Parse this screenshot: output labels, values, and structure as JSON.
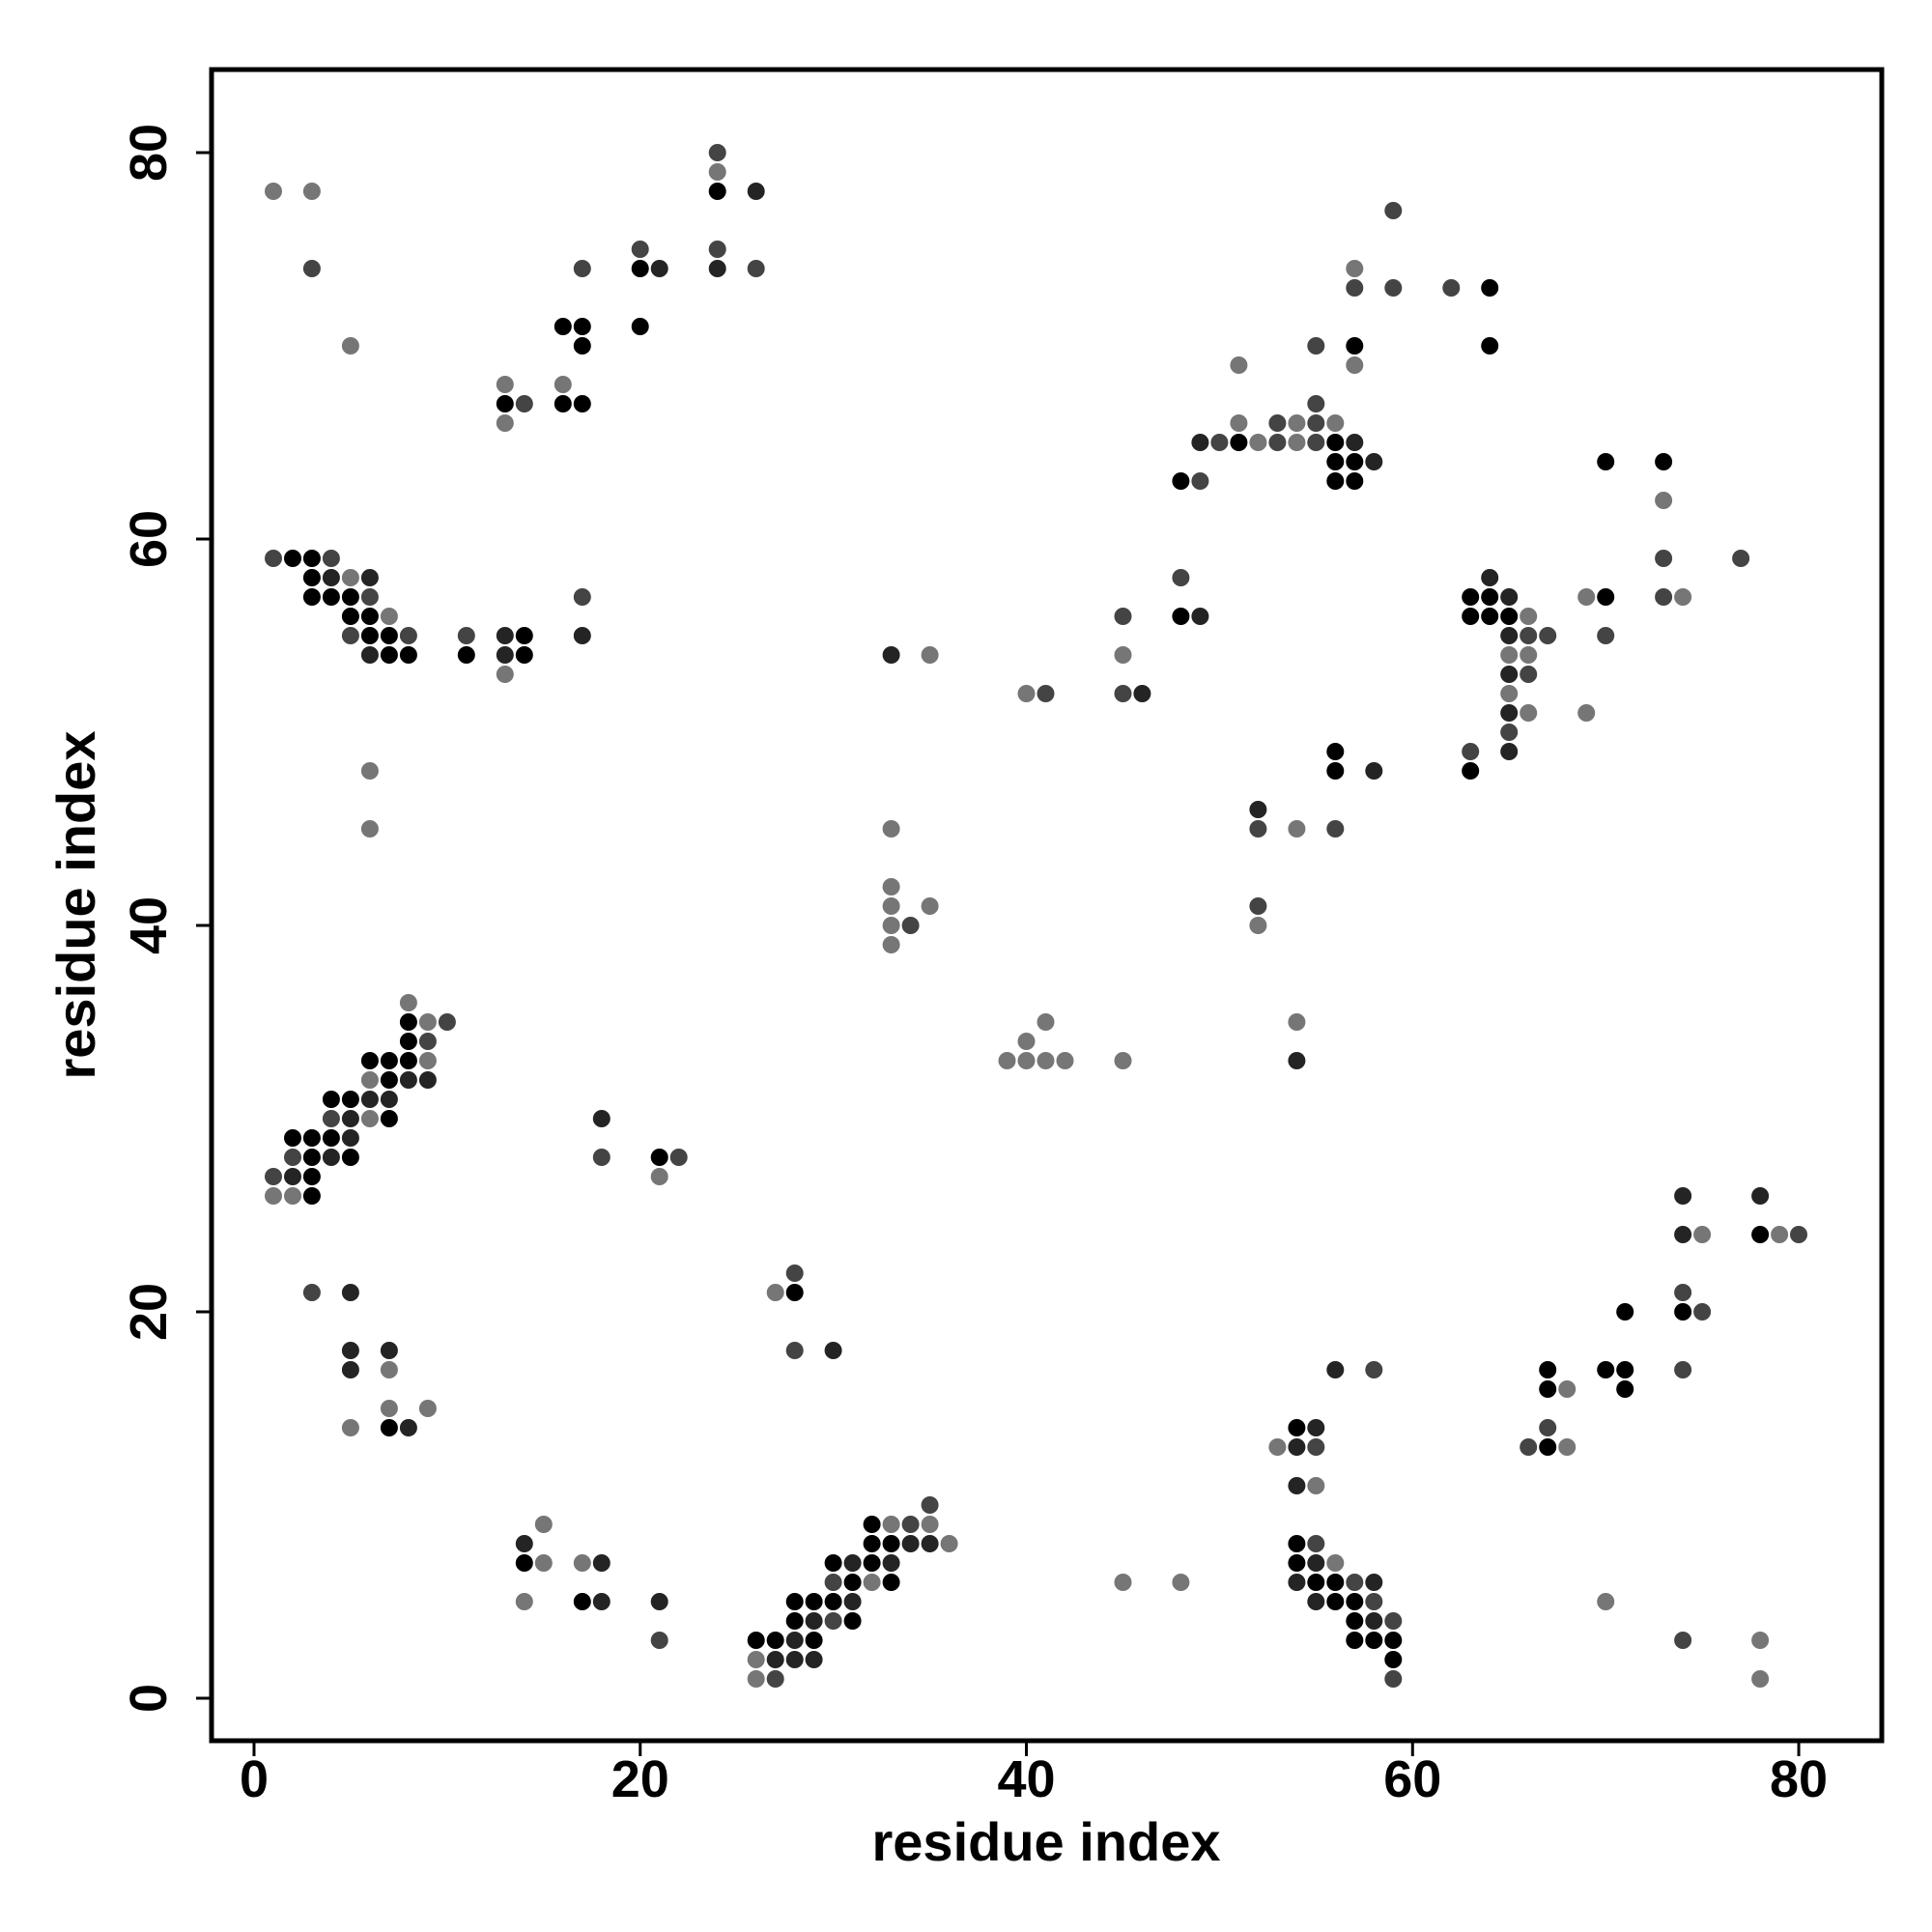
{
  "chart_data": {
    "type": "scatter",
    "title": "",
    "xlabel": "residue index",
    "ylabel": "residue index",
    "xlim": [
      -2.2,
      84.3
    ],
    "ylim": [
      -2.2,
      84.3
    ],
    "xticks": [
      0,
      20,
      40,
      60,
      80
    ],
    "yticks": [
      0,
      20,
      40,
      60,
      80
    ],
    "grid": false,
    "legend": "none",
    "shade_colors": {
      "1": "#000000",
      "2": "#242424",
      "3": "#444444",
      "4": "#767676"
    },
    "points": [
      [
        1,
        78,
        4
      ],
      [
        3,
        78,
        4
      ],
      [
        3,
        74,
        3
      ],
      [
        5,
        70,
        4
      ],
      [
        24,
        80,
        3
      ],
      [
        24,
        79,
        4
      ],
      [
        24,
        78,
        1
      ],
      [
        26,
        78,
        2
      ],
      [
        24,
        75,
        3
      ],
      [
        24,
        74,
        2
      ],
      [
        26,
        74,
        3
      ],
      [
        20,
        75,
        3
      ],
      [
        20,
        74,
        1
      ],
      [
        21,
        74,
        2
      ],
      [
        17,
        74,
        3
      ],
      [
        20,
        71,
        1
      ],
      [
        16,
        71,
        1
      ],
      [
        17,
        71,
        1
      ],
      [
        17,
        70,
        1
      ],
      [
        13,
        68,
        4
      ],
      [
        16,
        68,
        4
      ],
      [
        13,
        67,
        1
      ],
      [
        14,
        67,
        3
      ],
      [
        16,
        67,
        1
      ],
      [
        17,
        67,
        1
      ],
      [
        13,
        66,
        4
      ],
      [
        1,
        59,
        3
      ],
      [
        2,
        59,
        1
      ],
      [
        3,
        59,
        1
      ],
      [
        4,
        59,
        3
      ],
      [
        3,
        58,
        1
      ],
      [
        4,
        58,
        2
      ],
      [
        5,
        58,
        4
      ],
      [
        6,
        58,
        2
      ],
      [
        3,
        57,
        1
      ],
      [
        4,
        57,
        1
      ],
      [
        5,
        57,
        1
      ],
      [
        6,
        57,
        3
      ],
      [
        5,
        56,
        1
      ],
      [
        6,
        56,
        1
      ],
      [
        7,
        56,
        4
      ],
      [
        5,
        55,
        3
      ],
      [
        6,
        55,
        1
      ],
      [
        7,
        55,
        1
      ],
      [
        8,
        55,
        3
      ],
      [
        6,
        54,
        2
      ],
      [
        7,
        54,
        1
      ],
      [
        8,
        54,
        1
      ],
      [
        11,
        55,
        3
      ],
      [
        11,
        54,
        1
      ],
      [
        13,
        55,
        2
      ],
      [
        14,
        55,
        1
      ],
      [
        13,
        54,
        2
      ],
      [
        14,
        54,
        1
      ],
      [
        13,
        53,
        4
      ],
      [
        17,
        57,
        3
      ],
      [
        17,
        55,
        2
      ],
      [
        6,
        48,
        4
      ],
      [
        6,
        45,
        4
      ],
      [
        8,
        36,
        4
      ],
      [
        8,
        35,
        1
      ],
      [
        9,
        35,
        4
      ],
      [
        10,
        35,
        3
      ],
      [
        8,
        34,
        1
      ],
      [
        9,
        34,
        3
      ],
      [
        6,
        33,
        1
      ],
      [
        7,
        33,
        1
      ],
      [
        8,
        33,
        1
      ],
      [
        9,
        33,
        4
      ],
      [
        6,
        32,
        4
      ],
      [
        7,
        32,
        1
      ],
      [
        8,
        32,
        2
      ],
      [
        9,
        32,
        2
      ],
      [
        4,
        31,
        1
      ],
      [
        5,
        31,
        1
      ],
      [
        6,
        31,
        2
      ],
      [
        7,
        31,
        2
      ],
      [
        4,
        30,
        3
      ],
      [
        5,
        30,
        2
      ],
      [
        6,
        30,
        4
      ],
      [
        7,
        30,
        1
      ],
      [
        2,
        29,
        1
      ],
      [
        3,
        29,
        1
      ],
      [
        4,
        29,
        1
      ],
      [
        5,
        29,
        2
      ],
      [
        2,
        28,
        3
      ],
      [
        3,
        28,
        1
      ],
      [
        4,
        28,
        2
      ],
      [
        5,
        28,
        1
      ],
      [
        1,
        27,
        3
      ],
      [
        2,
        27,
        2
      ],
      [
        3,
        27,
        1
      ],
      [
        1,
        26,
        4
      ],
      [
        2,
        26,
        4
      ],
      [
        3,
        26,
        1
      ],
      [
        18,
        30,
        2
      ],
      [
        18,
        28,
        3
      ],
      [
        21,
        28,
        1
      ],
      [
        22,
        28,
        3
      ],
      [
        21,
        27,
        4
      ],
      [
        3,
        21,
        3
      ],
      [
        5,
        21,
        2
      ],
      [
        5,
        18,
        2
      ],
      [
        7,
        18,
        2
      ],
      [
        5,
        17,
        2
      ],
      [
        7,
        17,
        4
      ],
      [
        7,
        15,
        4
      ],
      [
        9,
        15,
        4
      ],
      [
        5,
        14,
        4
      ],
      [
        7,
        14,
        1
      ],
      [
        8,
        14,
        2
      ],
      [
        28,
        22,
        3
      ],
      [
        27,
        21,
        4
      ],
      [
        28,
        21,
        1
      ],
      [
        28,
        18,
        3
      ],
      [
        30,
        18,
        2
      ],
      [
        15,
        9,
        4
      ],
      [
        14,
        8,
        2
      ],
      [
        14,
        7,
        1
      ],
      [
        15,
        7,
        4
      ],
      [
        17,
        7,
        4
      ],
      [
        18,
        7,
        2
      ],
      [
        14,
        5,
        4
      ],
      [
        17,
        5,
        1
      ],
      [
        18,
        5,
        2
      ],
      [
        21,
        5,
        2
      ],
      [
        21,
        3,
        3
      ],
      [
        35,
        10,
        3
      ],
      [
        32,
        9,
        1
      ],
      [
        33,
        9,
        4
      ],
      [
        34,
        9,
        3
      ],
      [
        35,
        9,
        4
      ],
      [
        32,
        8,
        1
      ],
      [
        33,
        8,
        1
      ],
      [
        34,
        8,
        2
      ],
      [
        35,
        8,
        2
      ],
      [
        36,
        8,
        4
      ],
      [
        30,
        7,
        1
      ],
      [
        31,
        7,
        2
      ],
      [
        32,
        7,
        1
      ],
      [
        33,
        7,
        2
      ],
      [
        30,
        6,
        3
      ],
      [
        31,
        6,
        1
      ],
      [
        32,
        6,
        4
      ],
      [
        33,
        6,
        1
      ],
      [
        28,
        5,
        1
      ],
      [
        29,
        5,
        1
      ],
      [
        30,
        5,
        1
      ],
      [
        31,
        5,
        2
      ],
      [
        28,
        4,
        1
      ],
      [
        29,
        4,
        2
      ],
      [
        30,
        4,
        3
      ],
      [
        31,
        4,
        1
      ],
      [
        26,
        3,
        1
      ],
      [
        27,
        3,
        1
      ],
      [
        28,
        3,
        2
      ],
      [
        29,
        3,
        1
      ],
      [
        26,
        2,
        4
      ],
      [
        27,
        2,
        2
      ],
      [
        28,
        2,
        2
      ],
      [
        29,
        2,
        2
      ],
      [
        26,
        1,
        4
      ],
      [
        27,
        1,
        3
      ],
      [
        33,
        54,
        2
      ],
      [
        35,
        54,
        4
      ],
      [
        33,
        45,
        4
      ],
      [
        33,
        42,
        4
      ],
      [
        33,
        41,
        4
      ],
      [
        35,
        41,
        4
      ],
      [
        33,
        40,
        4
      ],
      [
        34,
        40,
        3
      ],
      [
        33,
        39,
        4
      ],
      [
        40,
        52,
        4
      ],
      [
        41,
        52,
        3
      ],
      [
        45,
        56,
        3
      ],
      [
        45,
        54,
        4
      ],
      [
        45,
        52,
        3
      ],
      [
        46,
        52,
        2
      ],
      [
        41,
        35,
        4
      ],
      [
        40,
        34,
        4
      ],
      [
        39,
        33,
        4
      ],
      [
        40,
        33,
        4
      ],
      [
        41,
        33,
        4
      ],
      [
        42,
        33,
        4
      ],
      [
        45,
        33,
        4
      ],
      [
        45,
        6,
        4
      ],
      [
        48,
        6,
        4
      ],
      [
        48,
        58,
        3
      ],
      [
        48,
        56,
        1
      ],
      [
        49,
        56,
        2
      ],
      [
        59,
        77,
        3
      ],
      [
        55,
        70,
        3
      ],
      [
        57,
        74,
        4
      ],
      [
        57,
        73,
        3
      ],
      [
        59,
        73,
        3
      ],
      [
        62,
        73,
        3
      ],
      [
        64,
        73,
        1
      ],
      [
        57,
        70,
        1
      ],
      [
        64,
        70,
        1
      ],
      [
        51,
        69,
        4
      ],
      [
        57,
        69,
        4
      ],
      [
        55,
        67,
        3
      ],
      [
        51,
        66,
        4
      ],
      [
        53,
        66,
        3
      ],
      [
        54,
        66,
        4
      ],
      [
        55,
        66,
        3
      ],
      [
        56,
        66,
        4
      ],
      [
        49,
        65,
        2
      ],
      [
        50,
        65,
        3
      ],
      [
        51,
        65,
        1
      ],
      [
        52,
        65,
        4
      ],
      [
        53,
        65,
        3
      ],
      [
        54,
        65,
        4
      ],
      [
        55,
        65,
        3
      ],
      [
        56,
        65,
        1
      ],
      [
        57,
        65,
        2
      ],
      [
        56,
        64,
        1
      ],
      [
        57,
        64,
        1
      ],
      [
        58,
        64,
        2
      ],
      [
        48,
        63,
        1
      ],
      [
        49,
        63,
        3
      ],
      [
        56,
        63,
        1
      ],
      [
        57,
        63,
        1
      ],
      [
        70,
        64,
        1
      ],
      [
        73,
        64,
        1
      ],
      [
        73,
        62,
        4
      ],
      [
        73,
        59,
        3
      ],
      [
        77,
        59,
        3
      ],
      [
        73,
        57,
        3
      ],
      [
        74,
        57,
        4
      ],
      [
        69,
        57,
        4
      ],
      [
        70,
        57,
        1
      ],
      [
        70,
        55,
        3
      ],
      [
        69,
        51,
        4
      ],
      [
        64,
        58,
        2
      ],
      [
        63,
        57,
        1
      ],
      [
        64,
        57,
        1
      ],
      [
        65,
        57,
        2
      ],
      [
        63,
        56,
        1
      ],
      [
        64,
        56,
        1
      ],
      [
        65,
        56,
        1
      ],
      [
        66,
        56,
        4
      ],
      [
        65,
        55,
        2
      ],
      [
        66,
        55,
        3
      ],
      [
        67,
        55,
        3
      ],
      [
        65,
        54,
        4
      ],
      [
        66,
        54,
        4
      ],
      [
        65,
        53,
        2
      ],
      [
        66,
        53,
        3
      ],
      [
        65,
        52,
        4
      ],
      [
        65,
        51,
        2
      ],
      [
        66,
        51,
        4
      ],
      [
        65,
        50,
        3
      ],
      [
        63,
        49,
        3
      ],
      [
        65,
        49,
        2
      ],
      [
        63,
        48,
        1
      ],
      [
        56,
        49,
        1
      ],
      [
        56,
        48,
        1
      ],
      [
        58,
        48,
        2
      ],
      [
        52,
        46,
        2
      ],
      [
        52,
        45,
        3
      ],
      [
        54,
        45,
        4
      ],
      [
        56,
        45,
        3
      ],
      [
        52,
        41,
        3
      ],
      [
        52,
        40,
        4
      ],
      [
        54,
        35,
        4
      ],
      [
        54,
        33,
        2
      ],
      [
        56,
        17,
        2
      ],
      [
        58,
        17,
        3
      ],
      [
        54,
        14,
        1
      ],
      [
        55,
        14,
        2
      ],
      [
        53,
        13,
        4
      ],
      [
        54,
        13,
        2
      ],
      [
        55,
        13,
        3
      ],
      [
        54,
        11,
        2
      ],
      [
        55,
        11,
        4
      ],
      [
        54,
        8,
        1
      ],
      [
        55,
        8,
        3
      ],
      [
        54,
        7,
        1
      ],
      [
        55,
        7,
        2
      ],
      [
        56,
        7,
        4
      ],
      [
        54,
        6,
        2
      ],
      [
        55,
        6,
        1
      ],
      [
        56,
        6,
        1
      ],
      [
        57,
        6,
        3
      ],
      [
        58,
        6,
        2
      ],
      [
        55,
        5,
        2
      ],
      [
        56,
        5,
        1
      ],
      [
        57,
        5,
        1
      ],
      [
        58,
        5,
        3
      ],
      [
        57,
        4,
        1
      ],
      [
        58,
        4,
        2
      ],
      [
        59,
        4,
        3
      ],
      [
        57,
        3,
        1
      ],
      [
        58,
        3,
        1
      ],
      [
        59,
        3,
        1
      ],
      [
        59,
        2,
        1
      ],
      [
        59,
        1,
        3
      ],
      [
        67,
        17,
        1
      ],
      [
        67,
        16,
        1
      ],
      [
        68,
        16,
        4
      ],
      [
        67,
        14,
        3
      ],
      [
        66,
        13,
        3
      ],
      [
        67,
        13,
        1
      ],
      [
        68,
        13,
        4
      ],
      [
        70,
        17,
        1
      ],
      [
        71,
        17,
        1
      ],
      [
        71,
        16,
        1
      ],
      [
        71,
        20,
        1
      ],
      [
        74,
        26,
        2
      ],
      [
        74,
        24,
        2
      ],
      [
        75,
        24,
        4
      ],
      [
        74,
        21,
        3
      ],
      [
        74,
        20,
        1
      ],
      [
        75,
        20,
        3
      ],
      [
        74,
        17,
        3
      ],
      [
        78,
        26,
        2
      ],
      [
        78,
        24,
        1
      ],
      [
        79,
        24,
        4
      ],
      [
        80,
        24,
        3
      ],
      [
        70,
        5,
        4
      ],
      [
        74,
        3,
        3
      ],
      [
        78,
        3,
        4
      ],
      [
        78,
        1,
        4
      ]
    ]
  }
}
